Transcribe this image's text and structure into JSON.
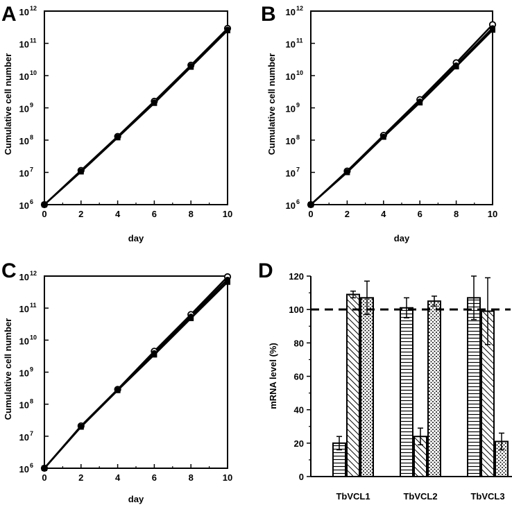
{
  "chart_data": [
    {
      "panel": "A",
      "type": "line",
      "xlabel": "day",
      "ylabel": "Cumulative cell number",
      "x_ticks": [
        "0",
        "2",
        "4",
        "6",
        "8",
        "10"
      ],
      "y_tick_base": "10",
      "y_tick_exponents": [
        "6",
        "7",
        "8",
        "9",
        "10",
        "11",
        "12"
      ],
      "xlim": [
        0,
        10
      ],
      "ylim": [
        1000000.0,
        1000000000000.0
      ],
      "yscale": "log",
      "grid": false,
      "series": [
        {
          "marker": "open-circle",
          "x": [
            0,
            2,
            4,
            6,
            8,
            10
          ],
          "values": [
            1000000.0,
            11500000.0,
            130000000.0,
            1600000000.0,
            21000000000.0,
            290000000000.0
          ]
        },
        {
          "marker": "filled-circle",
          "x": [
            0,
            2,
            4,
            6,
            8,
            10
          ],
          "values": [
            1000000.0,
            11000000.0,
            125000000.0,
            1500000000.0,
            20000000000.0,
            270000000000.0
          ]
        },
        {
          "marker": "filled-square",
          "x": [
            0,
            2,
            4,
            6,
            8,
            10
          ],
          "values": [
            1000000.0,
            10500000.0,
            120000000.0,
            1400000000.0,
            18500000000.0,
            250000000000.0
          ]
        }
      ]
    },
    {
      "panel": "B",
      "type": "line",
      "xlabel": "day",
      "ylabel": "Cumulative cell number",
      "x_ticks": [
        "0",
        "2",
        "4",
        "6",
        "8",
        "10"
      ],
      "y_tick_base": "10",
      "y_tick_exponents": [
        "6",
        "7",
        "8",
        "9",
        "10",
        "11",
        "12"
      ],
      "xlim": [
        0,
        10
      ],
      "ylim": [
        1000000.0,
        1000000000000.0
      ],
      "yscale": "log",
      "grid": false,
      "series": [
        {
          "marker": "open-circle",
          "x": [
            0,
            2,
            4,
            6,
            8,
            10
          ],
          "values": [
            1000000.0,
            11000000.0,
            140000000.0,
            1800000000.0,
            25000000000.0,
            380000000000.0
          ]
        },
        {
          "marker": "filled-circle",
          "x": [
            0,
            2,
            4,
            6,
            8,
            10
          ],
          "values": [
            1000000.0,
            10500000.0,
            130000000.0,
            1600000000.0,
            21000000000.0,
            300000000000.0
          ]
        },
        {
          "marker": "filled-square",
          "x": [
            0,
            2,
            4,
            6,
            8,
            10
          ],
          "values": [
            1000000.0,
            10000000.0,
            125000000.0,
            1450000000.0,
            19000000000.0,
            260000000000.0
          ]
        }
      ]
    },
    {
      "panel": "C",
      "type": "line",
      "xlabel": "day",
      "ylabel": "Cumulative cell number",
      "x_ticks": [
        "0",
        "2",
        "4",
        "6",
        "8",
        "10"
      ],
      "y_tick_base": "10",
      "y_tick_exponents": [
        "6",
        "7",
        "8",
        "9",
        "10",
        "11",
        "12"
      ],
      "xlim": [
        0,
        10
      ],
      "ylim": [
        1000000.0,
        1000000000000.0
      ],
      "yscale": "log",
      "grid": false,
      "series": [
        {
          "marker": "open-circle",
          "x": [
            0,
            2,
            4,
            6,
            8,
            10
          ],
          "values": [
            1000000.0,
            21000000.0,
            290000000.0,
            4500000000.0,
            63000000000.0,
            950000000000.0
          ]
        },
        {
          "marker": "filled-circle",
          "x": [
            0,
            2,
            4,
            6,
            8,
            10
          ],
          "values": [
            1000000.0,
            20000000.0,
            280000000.0,
            4000000000.0,
            55000000000.0,
            780000000000.0
          ]
        },
        {
          "marker": "filled-square",
          "x": [
            0,
            2,
            4,
            6,
            8,
            10
          ],
          "values": [
            1000000.0,
            19500000.0,
            270000000.0,
            3500000000.0,
            48000000000.0,
            650000000000.0
          ]
        }
      ]
    },
    {
      "panel": "D",
      "type": "bar",
      "ylabel": "mRNA level (%)",
      "categories": [
        "TbVCL1",
        "TbVCL2",
        "TbVCL3"
      ],
      "y_ticks": [
        "0",
        "20",
        "40",
        "60",
        "80",
        "100",
        "120"
      ],
      "ylim": [
        0,
        120
      ],
      "reference_line": 100,
      "grid": false,
      "series": [
        {
          "pattern": "horizontal-stripes",
          "values": [
            20,
            101,
            107
          ],
          "errors": [
            4,
            6,
            13
          ]
        },
        {
          "pattern": "diagonal-stripes",
          "values": [
            109,
            24,
            99
          ],
          "errors": [
            2,
            5,
            20
          ]
        },
        {
          "pattern": "dots",
          "values": [
            107,
            105,
            21
          ],
          "errors": [
            10,
            3,
            5
          ]
        }
      ]
    }
  ]
}
